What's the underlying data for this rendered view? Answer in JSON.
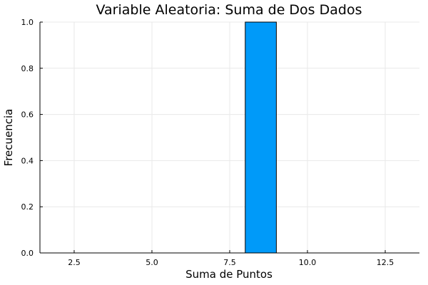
{
  "chart_data": {
    "type": "bar",
    "title": "Variable Aleatoria: Suma de Dos Dados",
    "xlabel": "Suma de Puntos",
    "ylabel": "Frecuencia",
    "xlim": [
      1.4,
      13.6
    ],
    "ylim": [
      0,
      1.0
    ],
    "xticks": [
      2.5,
      5.0,
      7.5,
      10.0,
      12.5
    ],
    "xtick_labels": [
      "2.5",
      "5.0",
      "7.5",
      "10.0",
      "12.5"
    ],
    "yticks": [
      0,
      0.2,
      0.4,
      0.6,
      0.8,
      1.0
    ],
    "ytick_labels": [
      "0.0",
      "0.2",
      "0.4",
      "0.6",
      "0.8",
      "1.0"
    ],
    "bins": [
      {
        "x0": 8,
        "x1": 9,
        "value": 1
      }
    ],
    "grid": true,
    "legend": "none",
    "bar_color": "#009af9"
  }
}
